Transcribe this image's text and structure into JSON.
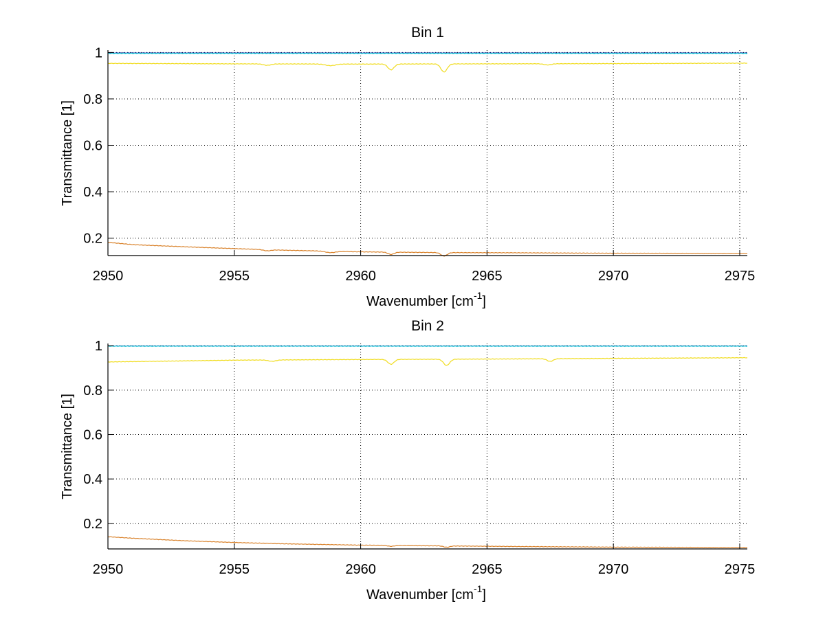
{
  "chart_data": [
    {
      "type": "line",
      "title": "Bin 1",
      "xlabel": "Wavenumber [cm",
      "xlabel_superscript": "-1",
      "xlabel_suffix": "]",
      "ylabel": "Transmittance [1]",
      "xlim": [
        2950,
        2975.3
      ],
      "ylim": [
        0.125,
        1.01
      ],
      "xticks": [
        2950,
        2955,
        2960,
        2965,
        2970,
        2975
      ],
      "yticks": [
        0.2,
        0.4,
        0.6,
        0.8,
        1
      ],
      "ytick_labels": [
        "0.2",
        "0.4",
        "0.6",
        "0.8",
        "1"
      ],
      "grid": true,
      "series": [
        {
          "color": "#0b2fa0",
          "base": [
            [
              2950,
              0.998
            ],
            [
              2975.3,
              0.998
            ]
          ],
          "dips": []
        },
        {
          "color": "#14c8d8",
          "base": [
            [
              2950,
              0.996
            ],
            [
              2975.3,
              0.996
            ]
          ],
          "dips": []
        },
        {
          "color": "#f0dc1e",
          "base": [
            [
              2950,
              0.953
            ],
            [
              2955,
              0.951
            ],
            [
              2960,
              0.95
            ],
            [
              2965,
              0.951
            ],
            [
              2970,
              0.952
            ],
            [
              2975.3,
              0.954
            ]
          ],
          "dips": [
            [
              2956.3,
              0.006,
              0.15
            ],
            [
              2958.8,
              0.007,
              0.2
            ],
            [
              2961.2,
              0.025,
              0.12
            ],
            [
              2963.3,
              0.035,
              0.12
            ],
            [
              2967.4,
              0.005,
              0.15
            ]
          ]
        },
        {
          "color": "#d9822b",
          "base": [
            [
              2950,
              0.182
            ],
            [
              2951,
              0.172
            ],
            [
              2953,
              0.163
            ],
            [
              2955,
              0.155
            ],
            [
              2957,
              0.148
            ],
            [
              2960,
              0.141
            ],
            [
              2963,
              0.138
            ],
            [
              2966,
              0.137
            ],
            [
              2970,
              0.135
            ],
            [
              2975.3,
              0.134
            ]
          ],
          "dips": [
            [
              2956.3,
              0.005,
              0.15
            ],
            [
              2958.8,
              0.006,
              0.2
            ],
            [
              2961.2,
              0.01,
              0.12
            ],
            [
              2963.3,
              0.015,
              0.12
            ]
          ]
        }
      ]
    },
    {
      "type": "line",
      "title": "Bin 2",
      "xlabel": "Wavenumber [cm",
      "xlabel_superscript": "-1",
      "xlabel_suffix": "]",
      "ylabel": "Transmittance [1]",
      "xlim": [
        2950,
        2975.3
      ],
      "ylim": [
        0.085,
        1.01
      ],
      "xticks": [
        2950,
        2955,
        2960,
        2965,
        2970,
        2975
      ],
      "yticks": [
        0.2,
        0.4,
        0.6,
        0.8,
        1
      ],
      "ytick_labels": [
        "0.2",
        "0.4",
        "0.6",
        "0.8",
        "1"
      ],
      "grid": true,
      "series": [
        {
          "color": "#0b2fa0",
          "base": [
            [
              2950,
              0.999
            ],
            [
              2975.3,
              0.999
            ]
          ],
          "dips": []
        },
        {
          "color": "#14c8d8",
          "base": [
            [
              2950,
              0.998
            ],
            [
              2975.3,
              0.998
            ]
          ],
          "dips": []
        },
        {
          "color": "#f0dc1e",
          "base": [
            [
              2950,
              0.927
            ],
            [
              2955,
              0.935
            ],
            [
              2960,
              0.938
            ],
            [
              2965,
              0.94
            ],
            [
              2970,
              0.943
            ],
            [
              2975.3,
              0.946
            ]
          ],
          "dips": [
            [
              2956.5,
              0.006,
              0.15
            ],
            [
              2961.2,
              0.022,
              0.12
            ],
            [
              2963.4,
              0.028,
              0.12
            ],
            [
              2967.5,
              0.012,
              0.12
            ]
          ]
        },
        {
          "color": "#d9822b",
          "base": [
            [
              2950,
              0.14
            ],
            [
              2951,
              0.133
            ],
            [
              2953,
              0.122
            ],
            [
              2955,
              0.114
            ],
            [
              2957,
              0.108
            ],
            [
              2960,
              0.102
            ],
            [
              2963,
              0.099
            ],
            [
              2966,
              0.096
            ],
            [
              2970,
              0.093
            ],
            [
              2975.3,
              0.091
            ]
          ],
          "dips": [
            [
              2961.2,
              0.004,
              0.12
            ],
            [
              2963.4,
              0.006,
              0.12
            ]
          ]
        }
      ]
    }
  ]
}
